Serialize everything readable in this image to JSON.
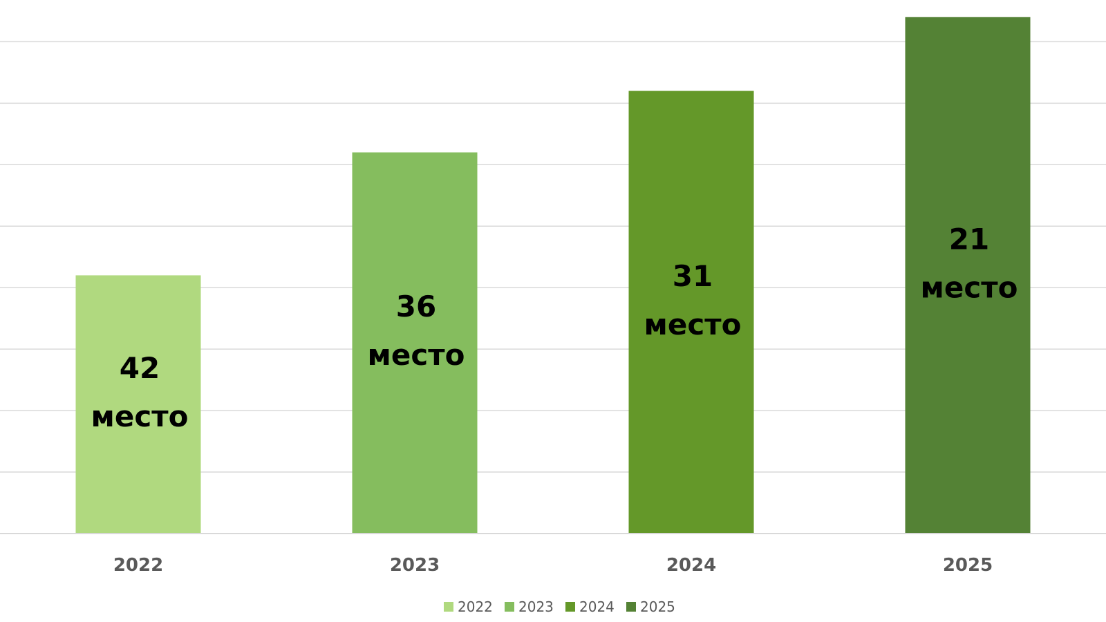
{
  "chart_data": {
    "type": "bar",
    "categories": [
      "2022",
      "2023",
      "2024",
      "2025"
    ],
    "values": [
      42,
      62,
      72,
      84
    ],
    "ylim": [
      0,
      86
    ],
    "grid": true,
    "legend": "bottom",
    "data_labels": [
      [
        "42",
        "место"
      ],
      [
        "36",
        "место"
      ],
      [
        "31",
        "место"
      ],
      [
        "21",
        "место"
      ]
    ],
    "colors": [
      "#b0d97f",
      "#85bd5e",
      "#649829",
      "#548235"
    ],
    "gridline_color": "#d9d9d9",
    "axis_color": "#d9d9d9"
  }
}
